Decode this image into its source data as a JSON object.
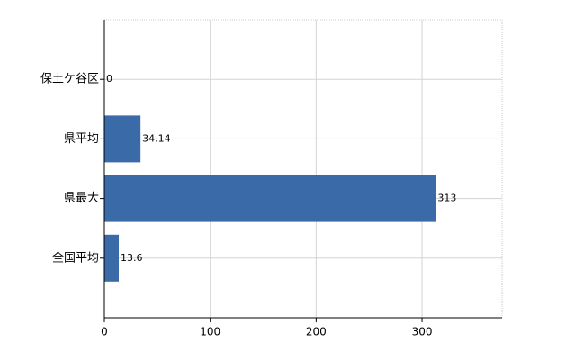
{
  "chart_data": {
    "type": "barh",
    "categories": [
      "保土ケ谷区",
      "県平均",
      "県最大",
      "全国平均"
    ],
    "values": [
      0,
      34.14,
      313,
      13.6
    ],
    "color": "#3a6aa8",
    "xlim": [
      0,
      375.6
    ],
    "xticks": [
      0,
      100,
      200,
      300
    ],
    "grid": true
  }
}
